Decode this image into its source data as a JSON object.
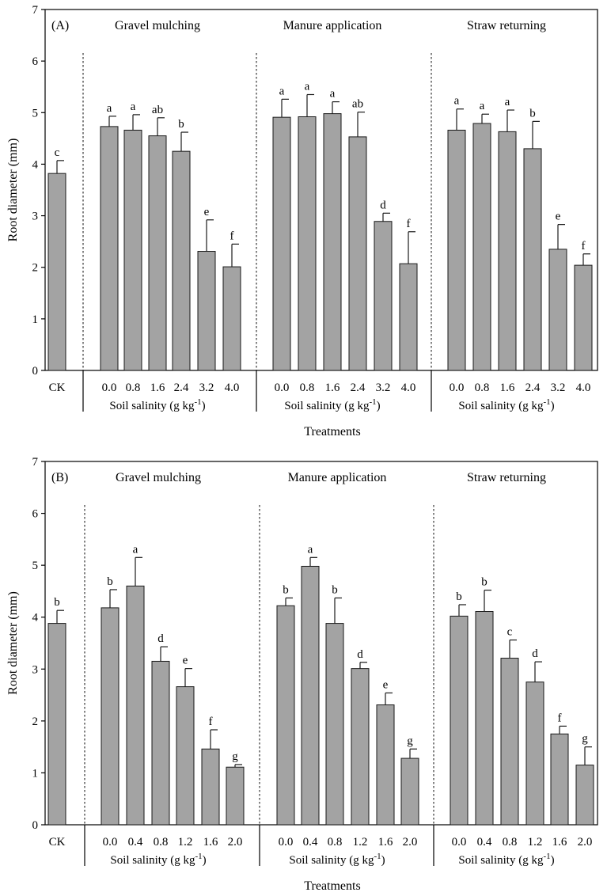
{
  "chart_data": [
    {
      "type": "bar",
      "panel_label": "(A)",
      "ylabel": "Root diameter (mm)",
      "xlabel": "Treatments",
      "ylim": [
        0,
        7
      ],
      "yticks": [
        "0",
        "1",
        "2",
        "3",
        "4",
        "5",
        "6",
        "7"
      ],
      "control": {
        "label": "CK",
        "value": 3.82,
        "err": 0.25,
        "letter": "c"
      },
      "groups": [
        {
          "name": "Gravel mulching",
          "xlabel": "Soil salinity (g kg",
          "xlabel_sup": "-1",
          "xlabel_tail": ")",
          "categories": [
            "0.0",
            "0.8",
            "1.6",
            "2.4",
            "3.2",
            "4.0"
          ],
          "values": [
            4.73,
            4.66,
            4.55,
            4.25,
            2.31,
            2.01
          ],
          "errors": [
            0.2,
            0.3,
            0.35,
            0.37,
            0.61,
            0.44
          ],
          "letters": [
            "a",
            "a",
            "ab",
            "b",
            "e",
            "f"
          ]
        },
        {
          "name": "Manure application",
          "xlabel": "Soil salinity (g kg",
          "xlabel_sup": "-1",
          "xlabel_tail": ")",
          "categories": [
            "0.0",
            "0.8",
            "1.6",
            "2.4",
            "3.2",
            "4.0"
          ],
          "values": [
            4.91,
            4.92,
            4.98,
            4.53,
            2.89,
            2.07
          ],
          "errors": [
            0.35,
            0.43,
            0.23,
            0.48,
            0.16,
            0.62
          ],
          "letters": [
            "a",
            "a",
            "a",
            "ab",
            "d",
            "f"
          ]
        },
        {
          "name": "Straw returning",
          "xlabel": "Soil salinity (g kg",
          "xlabel_sup": "-1",
          "xlabel_tail": ")",
          "categories": [
            "0.0",
            "0.8",
            "1.6",
            "2.4",
            "3.2",
            "4.0"
          ],
          "values": [
            4.66,
            4.79,
            4.63,
            4.3,
            2.35,
            2.04
          ],
          "errors": [
            0.41,
            0.18,
            0.42,
            0.53,
            0.48,
            0.22
          ],
          "letters": [
            "a",
            "a",
            "a",
            "b",
            "e",
            "f"
          ]
        }
      ]
    },
    {
      "type": "bar",
      "panel_label": "(B)",
      "ylabel": "Root diameter (mm)",
      "xlabel": "Treatments",
      "ylim": [
        0,
        7
      ],
      "yticks": [
        "0",
        "1",
        "2",
        "3",
        "4",
        "5",
        "6",
        "7"
      ],
      "control": {
        "label": "CK",
        "value": 3.88,
        "err": 0.25,
        "letter": "b"
      },
      "groups": [
        {
          "name": "Gravel mulching",
          "xlabel": "Soil salinity (g kg",
          "xlabel_sup": "-1",
          "xlabel_tail": ")",
          "categories": [
            "0.0",
            "0.4",
            "0.8",
            "1.2",
            "1.6",
            "2.0"
          ],
          "values": [
            4.18,
            4.6,
            3.15,
            2.66,
            1.46,
            1.11
          ],
          "errors": [
            0.35,
            0.55,
            0.28,
            0.35,
            0.37,
            0.05
          ],
          "letters": [
            "b",
            "a",
            "d",
            "e",
            "f",
            "g"
          ]
        },
        {
          "name": "Manure application",
          "xlabel": "Soil salinity (g kg",
          "xlabel_sup": "-1",
          "xlabel_tail": ")",
          "categories": [
            "0.0",
            "0.4",
            "0.8",
            "1.2",
            "1.6",
            "2.0"
          ],
          "values": [
            4.22,
            4.98,
            3.88,
            3.01,
            2.31,
            1.28
          ],
          "errors": [
            0.15,
            0.17,
            0.49,
            0.12,
            0.23,
            0.18
          ],
          "letters": [
            "b",
            "a",
            "b",
            "d",
            "e",
            "g"
          ]
        },
        {
          "name": "Straw returning",
          "xlabel": "Soil salinity (g kg",
          "xlabel_sup": "-1",
          "xlabel_tail": ")",
          "categories": [
            "0.0",
            "0.4",
            "0.8",
            "1.2",
            "1.6",
            "2.0"
          ],
          "values": [
            4.02,
            4.11,
            3.21,
            2.75,
            1.75,
            1.15
          ],
          "errors": [
            0.22,
            0.41,
            0.35,
            0.39,
            0.15,
            0.35
          ],
          "letters": [
            "b",
            "b",
            "c",
            "d",
            "f",
            "g"
          ]
        }
      ]
    }
  ]
}
